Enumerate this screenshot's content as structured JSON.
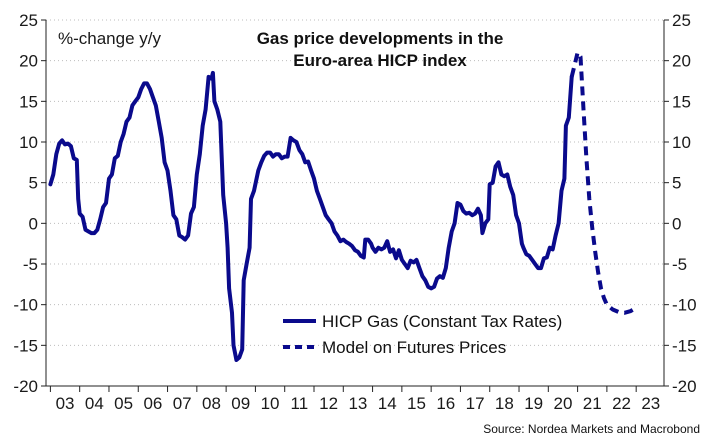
{
  "chart_data": {
    "type": "line",
    "title": "Gas price developments in the",
    "subtitle": "Euro-area HICP index",
    "unit_label": "%-change y/y",
    "source": "Source: Nordea Markets and Macrobond",
    "ylim": [
      -20,
      25
    ],
    "y_ticks": [
      25,
      20,
      15,
      10,
      5,
      0,
      -5,
      -10,
      -15,
      -20
    ],
    "y_tick_labels": [
      "25",
      "20",
      "15",
      "10",
      "5",
      "0",
      "-5",
      "-10",
      "-15",
      "-20"
    ],
    "x_range": [
      2002.85,
      2023.95
    ],
    "x_tick_positions": [
      2003.5,
      2004.5,
      2005.5,
      2006.5,
      2007.5,
      2008.5,
      2009.5,
      2010.5,
      2011.5,
      2012.5,
      2013.5,
      2014.5,
      2015.5,
      2016.5,
      2017.5,
      2018.5,
      2019.5,
      2020.5,
      2021.5,
      2022.5,
      2023.5
    ],
    "x_tick_labels": [
      "03",
      "04",
      "05",
      "06",
      "07",
      "08",
      "09",
      "10",
      "11",
      "12",
      "13",
      "14",
      "15",
      "16",
      "17",
      "18",
      "19",
      "20",
      "21",
      "22",
      "23"
    ],
    "grid": true,
    "legend_position": "bottom-center",
    "series": [
      {
        "name": "HICP Gas (Constant Tax Rates)",
        "style": "solid",
        "color": "#0a0a8c",
        "points": [
          [
            2003.0,
            4.8
          ],
          [
            2003.1,
            6.0
          ],
          [
            2003.2,
            8.5
          ],
          [
            2003.3,
            9.8
          ],
          [
            2003.4,
            10.2
          ],
          [
            2003.5,
            9.7
          ],
          [
            2003.6,
            9.8
          ],
          [
            2003.7,
            9.5
          ],
          [
            2003.8,
            8.0
          ],
          [
            2003.9,
            7.8
          ],
          [
            2003.95,
            3.0
          ],
          [
            2004.0,
            1.2
          ],
          [
            2004.1,
            0.8
          ],
          [
            2004.2,
            -0.8
          ],
          [
            2004.3,
            -1.0
          ],
          [
            2004.4,
            -1.2
          ],
          [
            2004.5,
            -1.2
          ],
          [
            2004.6,
            -0.8
          ],
          [
            2004.7,
            0.5
          ],
          [
            2004.8,
            2.0
          ],
          [
            2004.9,
            2.5
          ],
          [
            2005.0,
            5.5
          ],
          [
            2005.1,
            6.0
          ],
          [
            2005.2,
            8.0
          ],
          [
            2005.3,
            8.3
          ],
          [
            2005.4,
            10.0
          ],
          [
            2005.5,
            11.0
          ],
          [
            2005.6,
            12.5
          ],
          [
            2005.7,
            13.0
          ],
          [
            2005.8,
            14.5
          ],
          [
            2005.9,
            15.0
          ],
          [
            2006.0,
            15.5
          ],
          [
            2006.1,
            16.5
          ],
          [
            2006.2,
            17.2
          ],
          [
            2006.3,
            17.2
          ],
          [
            2006.4,
            16.5
          ],
          [
            2006.5,
            15.5
          ],
          [
            2006.6,
            14.5
          ],
          [
            2006.7,
            12.5
          ],
          [
            2006.8,
            10.5
          ],
          [
            2006.9,
            7.5
          ],
          [
            2007.0,
            6.5
          ],
          [
            2007.1,
            4.0
          ],
          [
            2007.2,
            1.0
          ],
          [
            2007.3,
            0.5
          ],
          [
            2007.4,
            -1.5
          ],
          [
            2007.5,
            -1.7
          ],
          [
            2007.6,
            -2.0
          ],
          [
            2007.7,
            -1.5
          ],
          [
            2007.8,
            1.2
          ],
          [
            2007.9,
            2.0
          ],
          [
            2008.0,
            6.0
          ],
          [
            2008.1,
            8.5
          ],
          [
            2008.2,
            12.0
          ],
          [
            2008.3,
            14.0
          ],
          [
            2008.4,
            18.0
          ],
          [
            2008.5,
            17.8
          ],
          [
            2008.55,
            18.5
          ],
          [
            2008.6,
            15.0
          ],
          [
            2008.7,
            14.0
          ],
          [
            2008.8,
            12.5
          ],
          [
            2008.9,
            3.5
          ],
          [
            2009.0,
            0.0
          ],
          [
            2009.05,
            -3.0
          ],
          [
            2009.1,
            -8.0
          ],
          [
            2009.2,
            -11.0
          ],
          [
            2009.25,
            -15.0
          ],
          [
            2009.35,
            -16.8
          ],
          [
            2009.45,
            -16.5
          ],
          [
            2009.55,
            -15.5
          ],
          [
            2009.6,
            -7.0
          ],
          [
            2009.7,
            -5.0
          ],
          [
            2009.8,
            -3.0
          ],
          [
            2009.85,
            3.0
          ],
          [
            2009.95,
            4.0
          ],
          [
            2010.1,
            6.5
          ],
          [
            2010.2,
            7.5
          ],
          [
            2010.3,
            8.3
          ],
          [
            2010.4,
            8.7
          ],
          [
            2010.5,
            8.7
          ],
          [
            2010.6,
            8.2
          ],
          [
            2010.7,
            8.5
          ],
          [
            2010.8,
            8.5
          ],
          [
            2010.9,
            8.0
          ],
          [
            2011.0,
            8.2
          ],
          [
            2011.1,
            8.2
          ],
          [
            2011.2,
            10.5
          ],
          [
            2011.3,
            10.2
          ],
          [
            2011.4,
            10.0
          ],
          [
            2011.5,
            9.0
          ],
          [
            2011.6,
            8.5
          ],
          [
            2011.7,
            7.5
          ],
          [
            2011.8,
            7.6
          ],
          [
            2011.9,
            6.5
          ],
          [
            2012.0,
            5.5
          ],
          [
            2012.1,
            4.0
          ],
          [
            2012.2,
            3.0
          ],
          [
            2012.3,
            2.0
          ],
          [
            2012.4,
            1.0
          ],
          [
            2012.5,
            0.5
          ],
          [
            2012.6,
            0.0
          ],
          [
            2012.7,
            -1.0
          ],
          [
            2012.8,
            -1.5
          ],
          [
            2012.9,
            -2.2
          ],
          [
            2013.0,
            -2.0
          ],
          [
            2013.1,
            -2.3
          ],
          [
            2013.2,
            -2.5
          ],
          [
            2013.3,
            -2.8
          ],
          [
            2013.4,
            -3.3
          ],
          [
            2013.5,
            -3.5
          ],
          [
            2013.6,
            -4.0
          ],
          [
            2013.7,
            -4.2
          ],
          [
            2013.75,
            -2.0
          ],
          [
            2013.85,
            -2.0
          ],
          [
            2013.95,
            -2.5
          ],
          [
            2014.0,
            -3.0
          ],
          [
            2014.1,
            -3.5
          ],
          [
            2014.2,
            -3.0
          ],
          [
            2014.3,
            -3.2
          ],
          [
            2014.4,
            -3.0
          ],
          [
            2014.5,
            -2.2
          ],
          [
            2014.6,
            -3.5
          ],
          [
            2014.7,
            -3.2
          ],
          [
            2014.8,
            -4.3
          ],
          [
            2014.9,
            -3.3
          ],
          [
            2015.0,
            -4.5
          ],
          [
            2015.1,
            -5.0
          ],
          [
            2015.2,
            -5.5
          ],
          [
            2015.3,
            -4.6
          ],
          [
            2015.4,
            -4.8
          ],
          [
            2015.5,
            -4.5
          ],
          [
            2015.6,
            -5.5
          ],
          [
            2015.7,
            -6.5
          ],
          [
            2015.8,
            -7.0
          ],
          [
            2015.9,
            -7.8
          ],
          [
            2016.0,
            -8.0
          ],
          [
            2016.1,
            -7.8
          ],
          [
            2016.2,
            -6.8
          ],
          [
            2016.3,
            -6.5
          ],
          [
            2016.4,
            -6.7
          ],
          [
            2016.5,
            -5.5
          ],
          [
            2016.6,
            -3.0
          ],
          [
            2016.7,
            -1.0
          ],
          [
            2016.8,
            0.0
          ],
          [
            2016.9,
            2.5
          ],
          [
            2017.0,
            2.3
          ],
          [
            2017.1,
            1.5
          ],
          [
            2017.2,
            1.2
          ],
          [
            2017.3,
            1.3
          ],
          [
            2017.4,
            1.0
          ],
          [
            2017.5,
            1.2
          ],
          [
            2017.6,
            1.8
          ],
          [
            2017.7,
            1.0
          ],
          [
            2017.75,
            -1.2
          ],
          [
            2017.85,
            0.0
          ],
          [
            2017.95,
            0.5
          ],
          [
            2018.0,
            4.8
          ],
          [
            2018.1,
            5.0
          ],
          [
            2018.2,
            7.0
          ],
          [
            2018.3,
            7.5
          ],
          [
            2018.4,
            6.0
          ],
          [
            2018.5,
            5.8
          ],
          [
            2018.6,
            6.0
          ],
          [
            2018.7,
            4.5
          ],
          [
            2018.8,
            3.5
          ],
          [
            2018.9,
            1.0
          ],
          [
            2019.0,
            0.0
          ],
          [
            2019.1,
            -2.5
          ],
          [
            2019.15,
            -3.0
          ],
          [
            2019.25,
            -3.8
          ],
          [
            2019.35,
            -4.0
          ],
          [
            2019.45,
            -4.5
          ],
          [
            2019.55,
            -5.0
          ],
          [
            2019.65,
            -5.5
          ],
          [
            2019.75,
            -5.5
          ],
          [
            2019.85,
            -4.3
          ],
          [
            2019.95,
            -4.2
          ],
          [
            2020.05,
            -3.0
          ],
          [
            2020.15,
            -3.2
          ],
          [
            2020.25,
            -1.5
          ],
          [
            2020.35,
            0.0
          ],
          [
            2020.45,
            4.0
          ],
          [
            2020.55,
            5.5
          ],
          [
            2020.6,
            12.0
          ],
          [
            2020.7,
            13.0
          ],
          [
            2020.8,
            18.0
          ]
        ]
      },
      {
        "name": "Model on Futures Prices",
        "style": "dashed",
        "color": "#0a0a8c",
        "points": [
          [
            2020.8,
            18.0
          ],
          [
            2020.9,
            19.5
          ],
          [
            2021.0,
            21.0
          ],
          [
            2021.1,
            20.5
          ],
          [
            2021.2,
            14.0
          ],
          [
            2021.3,
            8.0
          ],
          [
            2021.4,
            3.0
          ],
          [
            2021.5,
            -0.5
          ],
          [
            2021.6,
            -3.5
          ],
          [
            2021.7,
            -6.0
          ],
          [
            2021.8,
            -8.0
          ],
          [
            2021.9,
            -9.2
          ],
          [
            2022.0,
            -10.0
          ],
          [
            2022.2,
            -10.6
          ],
          [
            2022.4,
            -10.9
          ],
          [
            2022.6,
            -11.0
          ],
          [
            2022.8,
            -10.8
          ],
          [
            2022.95,
            -10.5
          ]
        ]
      }
    ]
  }
}
